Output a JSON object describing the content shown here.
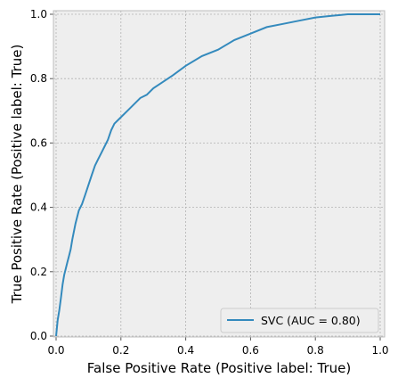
{
  "chart_data": {
    "type": "line",
    "xlabel": "False Positive Rate (Positive label: True)",
    "ylabel": "True Positive Rate (Positive label: True)",
    "xlim": [
      0.0,
      1.0
    ],
    "ylim": [
      0.0,
      1.0
    ],
    "xticks": [
      "0.0",
      "0.2",
      "0.4",
      "0.6",
      "0.8",
      "1.0"
    ],
    "yticks": [
      "0.0",
      "0.2",
      "0.4",
      "0.6",
      "0.8",
      "1.0"
    ],
    "grid": true,
    "legend_position": "lower-right",
    "series": [
      {
        "name": "SVC (AUC = 0.80)",
        "color": "#348abd",
        "x": [
          0.0,
          0.005,
          0.01,
          0.015,
          0.02,
          0.025,
          0.03,
          0.035,
          0.04,
          0.045,
          0.05,
          0.06,
          0.07,
          0.08,
          0.09,
          0.1,
          0.11,
          0.12,
          0.13,
          0.14,
          0.15,
          0.16,
          0.17,
          0.18,
          0.2,
          0.22,
          0.24,
          0.26,
          0.28,
          0.3,
          0.33,
          0.36,
          0.4,
          0.45,
          0.5,
          0.55,
          0.6,
          0.65,
          0.7,
          0.75,
          0.8,
          0.85,
          0.9,
          0.95,
          1.0
        ],
        "y": [
          0.0,
          0.05,
          0.08,
          0.12,
          0.16,
          0.19,
          0.21,
          0.23,
          0.25,
          0.27,
          0.3,
          0.35,
          0.39,
          0.41,
          0.44,
          0.47,
          0.5,
          0.53,
          0.55,
          0.57,
          0.59,
          0.61,
          0.64,
          0.66,
          0.68,
          0.7,
          0.72,
          0.74,
          0.75,
          0.77,
          0.79,
          0.81,
          0.84,
          0.87,
          0.89,
          0.92,
          0.94,
          0.96,
          0.97,
          0.98,
          0.99,
          0.995,
          1.0,
          1.0,
          1.0
        ]
      }
    ]
  }
}
